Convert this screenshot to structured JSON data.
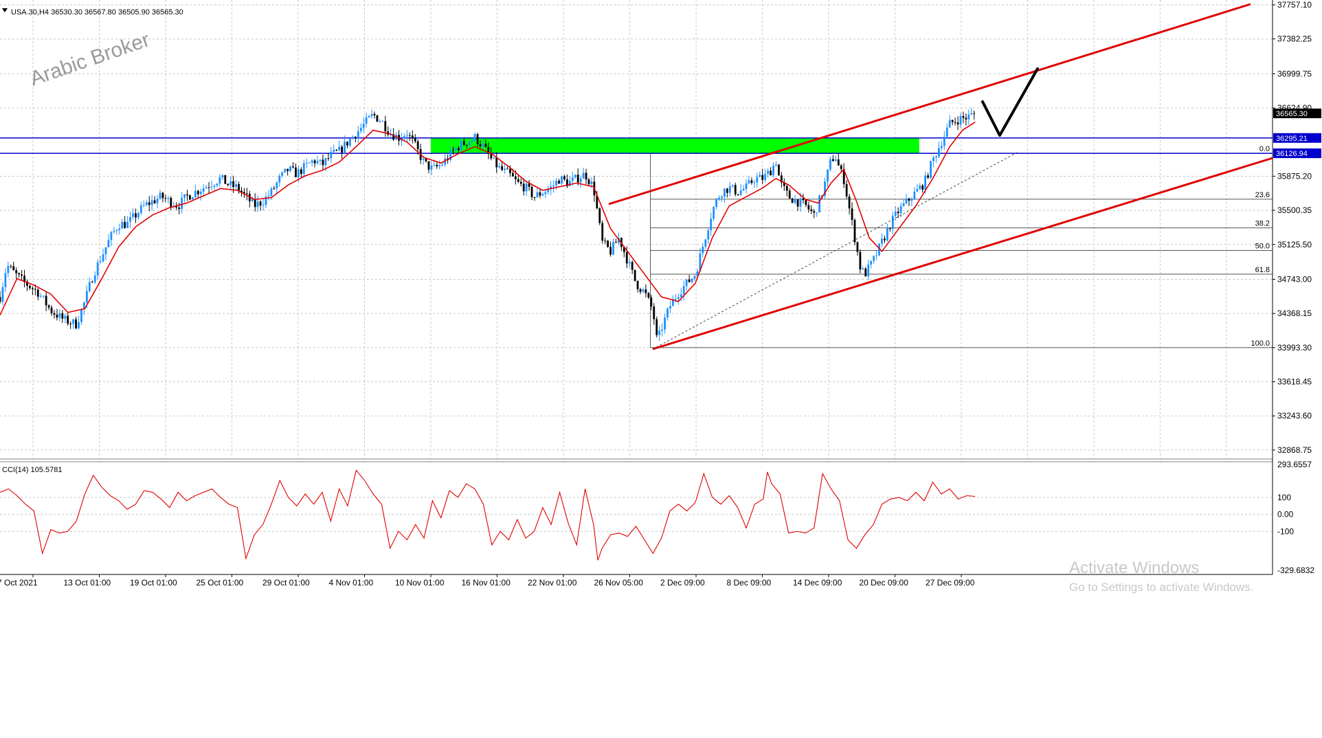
{
  "header": {
    "symbol_info": "USA.30,H4  36530.30 36567.80 36505.90 36565.30",
    "watermark": "Arabic Broker"
  },
  "chart_data": [
    {
      "type": "candlestick",
      "symbol": "USA.30",
      "timeframe": "H4",
      "ohlc_header": {
        "open": 36530.3,
        "high": 36567.8,
        "low": 36505.9,
        "close": 36565.3
      },
      "y_ticks": [
        "37757.10",
        "37382.25",
        "36999.75",
        "36624.90",
        "35875.20",
        "35500.35",
        "35125.50",
        "34743.00",
        "34368.15",
        "33993.30",
        "33618.45",
        "33243.60",
        "32868.75"
      ],
      "ylim": [
        32770,
        37810
      ],
      "x_ticks": [
        "7 Oct 2021",
        "13 Oct 01:00",
        "19 Oct 01:00",
        "25 Oct 01:00",
        "29 Oct 01:00",
        "4 Nov 01:00",
        "10 Nov 01:00",
        "16 Nov 01:00",
        "22 Nov 01:00",
        "26 Nov 05:00",
        "2 Dec 09:00",
        "8 Dec 09:00",
        "14 Dec 09:00",
        "20 Dec 09:00",
        "27 Dec 09:00"
      ],
      "price_path": [
        [
          0,
          34550
        ],
        [
          8,
          34900
        ],
        [
          18,
          34800
        ],
        [
          30,
          34700
        ],
        [
          45,
          34600
        ],
        [
          60,
          34400
        ],
        [
          75,
          34300
        ],
        [
          90,
          34250
        ],
        [
          100,
          34500
        ],
        [
          110,
          34800
        ],
        [
          120,
          35000
        ],
        [
          130,
          35200
        ],
        [
          140,
          35350
        ],
        [
          150,
          35350
        ],
        [
          160,
          35450
        ],
        [
          170,
          35550
        ],
        [
          180,
          35600
        ],
        [
          190,
          35650
        ],
        [
          200,
          35600
        ],
        [
          210,
          35550
        ],
        [
          220,
          35650
        ],
        [
          230,
          35700
        ],
        [
          240,
          35750
        ],
        [
          250,
          35800
        ],
        [
          260,
          35850
        ],
        [
          270,
          35780
        ],
        [
          280,
          35750
        ],
        [
          290,
          35650
        ],
        [
          300,
          35550
        ],
        [
          310,
          35600
        ],
        [
          320,
          35700
        ],
        [
          330,
          35850
        ],
        [
          340,
          35950
        ],
        [
          350,
          35900
        ],
        [
          360,
          35980
        ],
        [
          370,
          36050
        ],
        [
          380,
          36000
        ],
        [
          390,
          36100
        ],
        [
          400,
          36150
        ],
        [
          410,
          36250
        ],
        [
          420,
          36350
        ],
        [
          430,
          36450
        ],
        [
          440,
          36550
        ],
        [
          450,
          36480
        ],
        [
          460,
          36350
        ],
        [
          470,
          36300
        ],
        [
          480,
          36350
        ],
        [
          490,
          36200
        ],
        [
          500,
          36020
        ],
        [
          510,
          35950
        ],
        [
          520,
          36000
        ],
        [
          530,
          36100
        ],
        [
          540,
          36200
        ],
        [
          550,
          36250
        ],
        [
          560,
          36300
        ],
        [
          570,
          36200
        ],
        [
          580,
          36050
        ],
        [
          590,
          35950
        ],
        [
          600,
          35900
        ],
        [
          610,
          35800
        ],
        [
          620,
          35750
        ],
        [
          630,
          35650
        ],
        [
          640,
          35700
        ],
        [
          650,
          35750
        ],
        [
          660,
          35850
        ],
        [
          670,
          35800
        ],
        [
          680,
          35850
        ],
        [
          690,
          35900
        ],
        [
          700,
          35750
        ],
        [
          705,
          35450
        ],
        [
          710,
          35150
        ],
        [
          720,
          35050
        ],
        [
          730,
          35200
        ],
        [
          740,
          34950
        ],
        [
          750,
          34700
        ],
        [
          760,
          34600
        ],
        [
          770,
          34400
        ],
        [
          775,
          34050
        ],
        [
          780,
          34200
        ],
        [
          790,
          34450
        ],
        [
          800,
          34600
        ],
        [
          810,
          34700
        ],
        [
          820,
          34800
        ],
        [
          830,
          35150
        ],
        [
          840,
          35500
        ],
        [
          850,
          35700
        ],
        [
          860,
          35750
        ],
        [
          870,
          35700
        ],
        [
          880,
          35750
        ],
        [
          890,
          35850
        ],
        [
          900,
          35850
        ],
        [
          910,
          35950
        ],
        [
          915,
          36050
        ],
        [
          920,
          35800
        ],
        [
          930,
          35650
        ],
        [
          940,
          35600
        ],
        [
          950,
          35550
        ],
        [
          960,
          35450
        ],
        [
          970,
          35700
        ],
        [
          980,
          36050
        ],
        [
          985,
          36100
        ],
        [
          990,
          35950
        ],
        [
          995,
          35850
        ],
        [
          1000,
          35600
        ],
        [
          1005,
          35350
        ],
        [
          1010,
          35100
        ],
        [
          1015,
          34850
        ],
        [
          1020,
          34800
        ],
        [
          1030,
          34950
        ],
        [
          1040,
          35150
        ],
        [
          1050,
          35350
        ],
        [
          1060,
          35500
        ],
        [
          1070,
          35600
        ],
        [
          1080,
          35700
        ],
        [
          1090,
          35800
        ],
        [
          1100,
          36050
        ],
        [
          1110,
          36250
        ],
        [
          1120,
          36450
        ],
        [
          1130,
          36500
        ],
        [
          1140,
          36520
        ],
        [
          1150,
          36565
        ]
      ],
      "ma_path": [
        [
          0,
          34350
        ],
        [
          20,
          34750
        ],
        [
          40,
          34680
        ],
        [
          60,
          34580
        ],
        [
          80,
          34380
        ],
        [
          100,
          34420
        ],
        [
          120,
          34750
        ],
        [
          140,
          35100
        ],
        [
          160,
          35320
        ],
        [
          180,
          35450
        ],
        [
          200,
          35530
        ],
        [
          220,
          35580
        ],
        [
          240,
          35660
        ],
        [
          260,
          35740
        ],
        [
          280,
          35720
        ],
        [
          300,
          35620
        ],
        [
          320,
          35640
        ],
        [
          340,
          35780
        ],
        [
          360,
          35880
        ],
        [
          380,
          35940
        ],
        [
          400,
          36030
        ],
        [
          420,
          36200
        ],
        [
          440,
          36380
        ],
        [
          460,
          36340
        ],
        [
          480,
          36250
        ],
        [
          500,
          36080
        ],
        [
          520,
          36020
        ],
        [
          540,
          36120
        ],
        [
          560,
          36200
        ],
        [
          580,
          36120
        ],
        [
          600,
          35980
        ],
        [
          620,
          35820
        ],
        [
          640,
          35720
        ],
        [
          660,
          35760
        ],
        [
          680,
          35800
        ],
        [
          700,
          35760
        ],
        [
          720,
          35300
        ],
        [
          740,
          35050
        ],
        [
          760,
          34800
        ],
        [
          780,
          34550
        ],
        [
          800,
          34500
        ],
        [
          820,
          34700
        ],
        [
          840,
          35200
        ],
        [
          860,
          35550
        ],
        [
          880,
          35650
        ],
        [
          900,
          35750
        ],
        [
          915,
          35850
        ],
        [
          930,
          35780
        ],
        [
          950,
          35620
        ],
        [
          965,
          35580
        ],
        [
          980,
          35800
        ],
        [
          995,
          35950
        ],
        [
          1010,
          35600
        ],
        [
          1025,
          35200
        ],
        [
          1040,
          35050
        ],
        [
          1060,
          35300
        ],
        [
          1080,
          35550
        ],
        [
          1100,
          35850
        ],
        [
          1120,
          36200
        ],
        [
          1135,
          36380
        ],
        [
          1150,
          36470
        ]
      ],
      "fibonacci": {
        "high": 36126.94,
        "low": 33993.3,
        "levels": [
          {
            "label": "0.0",
            "value": 36126.94
          },
          {
            "label": "23.6",
            "value": 35623
          },
          {
            "label": "38.2",
            "value": 35308
          },
          {
            "label": "50.0",
            "value": 35060
          },
          {
            "label": "61.8",
            "value": 34800
          },
          {
            "label": "100.0",
            "value": 33993.3
          }
        ]
      },
      "horizontal_lines": [
        {
          "label": "36295.21",
          "value": 36295.21,
          "color": "#0000cc"
        },
        {
          "label": "36126.94",
          "value": 36126.94,
          "color": "#0000cc"
        }
      ],
      "current_price": {
        "label": "36565.30",
        "value": 36565.3
      },
      "zone": {
        "from": 36126.94,
        "to": 36295.21,
        "color": "#00ff00"
      },
      "colors": {
        "bull": "#1e90ff",
        "bear": "#000000",
        "ma": "#e00000",
        "channel": "#e00000",
        "level_line": "#0000cc"
      }
    },
    {
      "type": "line",
      "name": "CCI(14) 105.5781",
      "y_ticks": [
        "293.6557",
        "100",
        "0.00",
        "-100",
        "-329.6832"
      ],
      "ylim": [
        -329.6832,
        293.6557
      ],
      "values": [
        [
          0,
          130
        ],
        [
          10,
          150
        ],
        [
          20,
          110
        ],
        [
          30,
          60
        ],
        [
          40,
          20
        ],
        [
          50,
          -230
        ],
        [
          60,
          -90
        ],
        [
          70,
          -110
        ],
        [
          80,
          -100
        ],
        [
          90,
          -40
        ],
        [
          100,
          120
        ],
        [
          110,
          230
        ],
        [
          120,
          160
        ],
        [
          130,
          110
        ],
        [
          140,
          80
        ],
        [
          150,
          30
        ],
        [
          160,
          60
        ],
        [
          170,
          140
        ],
        [
          180,
          130
        ],
        [
          190,
          90
        ],
        [
          200,
          40
        ],
        [
          210,
          130
        ],
        [
          220,
          80
        ],
        [
          230,
          110
        ],
        [
          240,
          130
        ],
        [
          250,
          150
        ],
        [
          260,
          100
        ],
        [
          270,
          60
        ],
        [
          280,
          40
        ],
        [
          290,
          -260
        ],
        [
          300,
          -120
        ],
        [
          310,
          -60
        ],
        [
          320,
          60
        ],
        [
          330,
          200
        ],
        [
          340,
          100
        ],
        [
          350,
          50
        ],
        [
          360,
          120
        ],
        [
          370,
          60
        ],
        [
          380,
          130
        ],
        [
          390,
          -40
        ],
        [
          400,
          150
        ],
        [
          410,
          50
        ],
        [
          420,
          260
        ],
        [
          430,
          200
        ],
        [
          440,
          120
        ],
        [
          450,
          60
        ],
        [
          460,
          -200
        ],
        [
          470,
          -100
        ],
        [
          480,
          -150
        ],
        [
          490,
          -60
        ],
        [
          500,
          -140
        ],
        [
          510,
          80
        ],
        [
          520,
          -20
        ],
        [
          530,
          140
        ],
        [
          540,
          100
        ],
        [
          550,
          180
        ],
        [
          560,
          150
        ],
        [
          570,
          60
        ],
        [
          580,
          -180
        ],
        [
          590,
          -100
        ],
        [
          600,
          -150
        ],
        [
          610,
          -30
        ],
        [
          620,
          -140
        ],
        [
          630,
          -100
        ],
        [
          640,
          40
        ],
        [
          650,
          -60
        ],
        [
          660,
          130
        ],
        [
          670,
          -50
        ],
        [
          680,
          -180
        ],
        [
          690,
          150
        ],
        [
          700,
          -60
        ],
        [
          705,
          -270
        ],
        [
          710,
          -200
        ],
        [
          720,
          -120
        ],
        [
          730,
          -110
        ],
        [
          740,
          -130
        ],
        [
          750,
          -70
        ],
        [
          760,
          -150
        ],
        [
          770,
          -230
        ],
        [
          780,
          -140
        ],
        [
          790,
          20
        ],
        [
          800,
          60
        ],
        [
          810,
          20
        ],
        [
          820,
          70
        ],
        [
          830,
          240
        ],
        [
          840,
          100
        ],
        [
          850,
          60
        ],
        [
          860,
          110
        ],
        [
          870,
          40
        ],
        [
          880,
          -80
        ],
        [
          890,
          60
        ],
        [
          900,
          90
        ],
        [
          905,
          250
        ],
        [
          910,
          180
        ],
        [
          920,
          120
        ],
        [
          930,
          -110
        ],
        [
          940,
          -100
        ],
        [
          950,
          -110
        ],
        [
          960,
          -80
        ],
        [
          970,
          240
        ],
        [
          980,
          150
        ],
        [
          990,
          80
        ],
        [
          1000,
          -150
        ],
        [
          1010,
          -200
        ],
        [
          1020,
          -120
        ],
        [
          1030,
          -60
        ],
        [
          1040,
          60
        ],
        [
          1050,
          90
        ],
        [
          1060,
          100
        ],
        [
          1070,
          80
        ],
        [
          1080,
          130
        ],
        [
          1090,
          80
        ],
        [
          1100,
          190
        ],
        [
          1110,
          120
        ],
        [
          1120,
          150
        ],
        [
          1130,
          90
        ],
        [
          1140,
          110
        ],
        [
          1150,
          106
        ]
      ],
      "color": "#e00000"
    }
  ],
  "watermark_os": {
    "line1": "Activate Windows",
    "line2": "Go to Settings to activate Windows."
  }
}
